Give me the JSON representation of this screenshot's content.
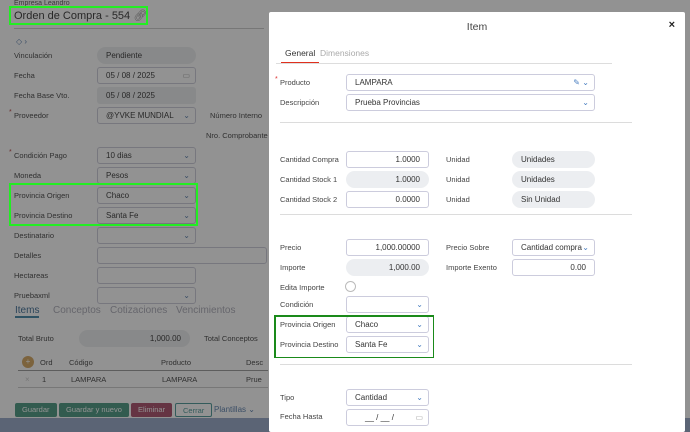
{
  "background": {
    "company": "Empresa Leandro",
    "title": "Orden de Compra - 554",
    "fields": [
      {
        "label": "Vinculación",
        "value": "Pendiente"
      },
      {
        "label": "Fecha",
        "value": "05 / 08 / 2025"
      },
      {
        "label": "Fecha Base Vto.",
        "value": "05 / 08 / 2025"
      },
      {
        "label": "Proveedor",
        "value": "@YVKE MUNDIAL"
      },
      {
        "label": "Condición Pago",
        "value": "10 dias"
      },
      {
        "label": "Moneda",
        "value": "Pesos"
      },
      {
        "label": "Provincia Origen",
        "value": "Chaco"
      },
      {
        "label": "Provincia Destino",
        "value": "Santa Fe"
      },
      {
        "label": "Destinatario",
        "value": ""
      },
      {
        "label": "Detalles",
        "value": ""
      },
      {
        "label": "Hectareas",
        "value": ""
      },
      {
        "label": "Pruebaxml",
        "value": ""
      }
    ],
    "numero_interno_label": "Número Interno",
    "nro_comprobante_label": "Nro. Comprobante",
    "tabs": [
      "Items",
      "Conceptos",
      "Cotizaciones",
      "Vencimientos"
    ],
    "total_bruto_label": "Total Bruto",
    "total_bruto_value": "1,000.00",
    "total_conceptos_label": "Total Conceptos",
    "table": {
      "headers": [
        "Ord",
        "Código",
        "Producto",
        "Desc"
      ],
      "rows": [
        [
          "1",
          "LAMPARA",
          "LAMPARA",
          "Prue"
        ]
      ]
    },
    "buttons": {
      "save": "Guardar",
      "save_new": "Guardar y nuevo",
      "delete": "Eliminar",
      "close": "Cerrar",
      "templates": "Plantillas"
    }
  },
  "modal": {
    "title": "Item",
    "tabs": [
      "General",
      "Dimensiones"
    ],
    "producto_label": "Producto",
    "producto_value": "LAMPARA",
    "descripcion_label": "Descripción",
    "descripcion_value": "Prueba Provincias",
    "cantidades": [
      {
        "label": "Cantidad Compra",
        "value": "1.0000",
        "unit_label": "Unidad",
        "unit": "Unidades"
      },
      {
        "label": "Cantidad Stock 1",
        "value": "1.0000",
        "unit_label": "Unidad",
        "unit": "Unidades"
      },
      {
        "label": "Cantidad Stock 2",
        "value": "0.0000",
        "unit_label": "Unidad",
        "unit": "Sin Unidad"
      }
    ],
    "precio_label": "Precio",
    "precio_value": "1,000.00000",
    "precio_sobre_label": "Precio Sobre",
    "precio_sobre_value": "Cantidad compra",
    "importe_label": "Importe",
    "importe_value": "1,000.00",
    "importe_exento_label": "Importe Exento",
    "importe_exento_value": "0.00",
    "edita_importe_label": "Edita Importe",
    "condicion_label": "Condición",
    "condicion_value": "",
    "prov_origen_label": "Provincia Origen",
    "prov_origen_value": "Chaco",
    "prov_destino_label": "Provincia Destino",
    "prov_destino_value": "Santa Fe",
    "tipo_label": "Tipo",
    "tipo_value": "Cantidad",
    "fecha_hasta_label": "Fecha Hasta",
    "fecha_hasta_value": "__ / __ /"
  },
  "colors": {
    "highlight": "#22ee22",
    "modal_highlight": "#1a8a1a",
    "tab_active": "#e0301e"
  }
}
